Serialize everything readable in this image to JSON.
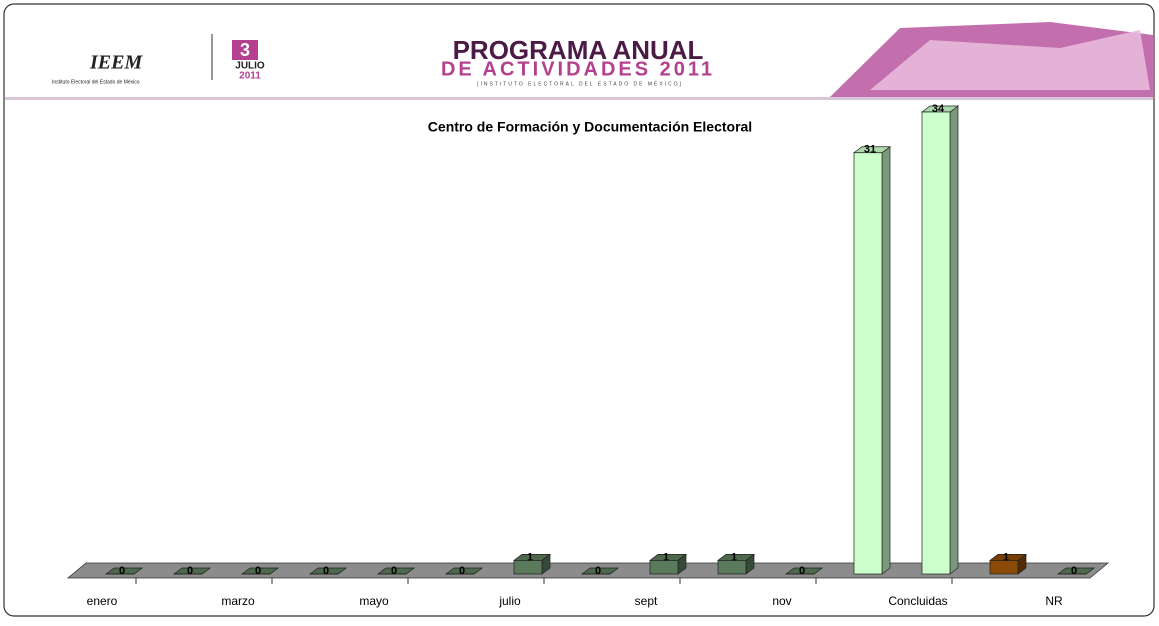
{
  "header": {
    "logo": "IEEM",
    "logo_caption": "Instituto Electoral del Estado de México",
    "day": "3",
    "month": "JULIO",
    "year": "2011",
    "program_line1": "PROGRAMA ANUAL",
    "program_line2": "DE ACTIVIDADES 2011",
    "program_line3": "[INSTITUTO ELECTORAL DEL ESTADO DE MÉXICO]"
  },
  "chart_data": {
    "type": "bar3d",
    "title": "Centro de Formación y Documentación Electoral",
    "categories": [
      "enero",
      null,
      "marzo",
      null,
      "mayo",
      null,
      "julio",
      null,
      "sept",
      null,
      "nov",
      null,
      "Concluidas",
      null,
      "NR"
    ],
    "values": [
      0,
      0,
      0,
      0,
      0,
      0,
      1,
      0,
      1,
      1,
      0,
      31,
      34,
      1,
      0
    ],
    "colors": [
      "#5b7a5b",
      "#5b7a5b",
      "#5b7a5b",
      "#5b7a5b",
      "#5b7a5b",
      "#5b7a5b",
      "#5b7a5b",
      "#5b7a5b",
      "#5b7a5b",
      "#5b7a5b",
      "#5b7a5b",
      "#ccffcc",
      "#ccffcc",
      "#8b4a06",
      "#5b7a5b"
    ],
    "ylim": [
      0,
      34
    ]
  }
}
